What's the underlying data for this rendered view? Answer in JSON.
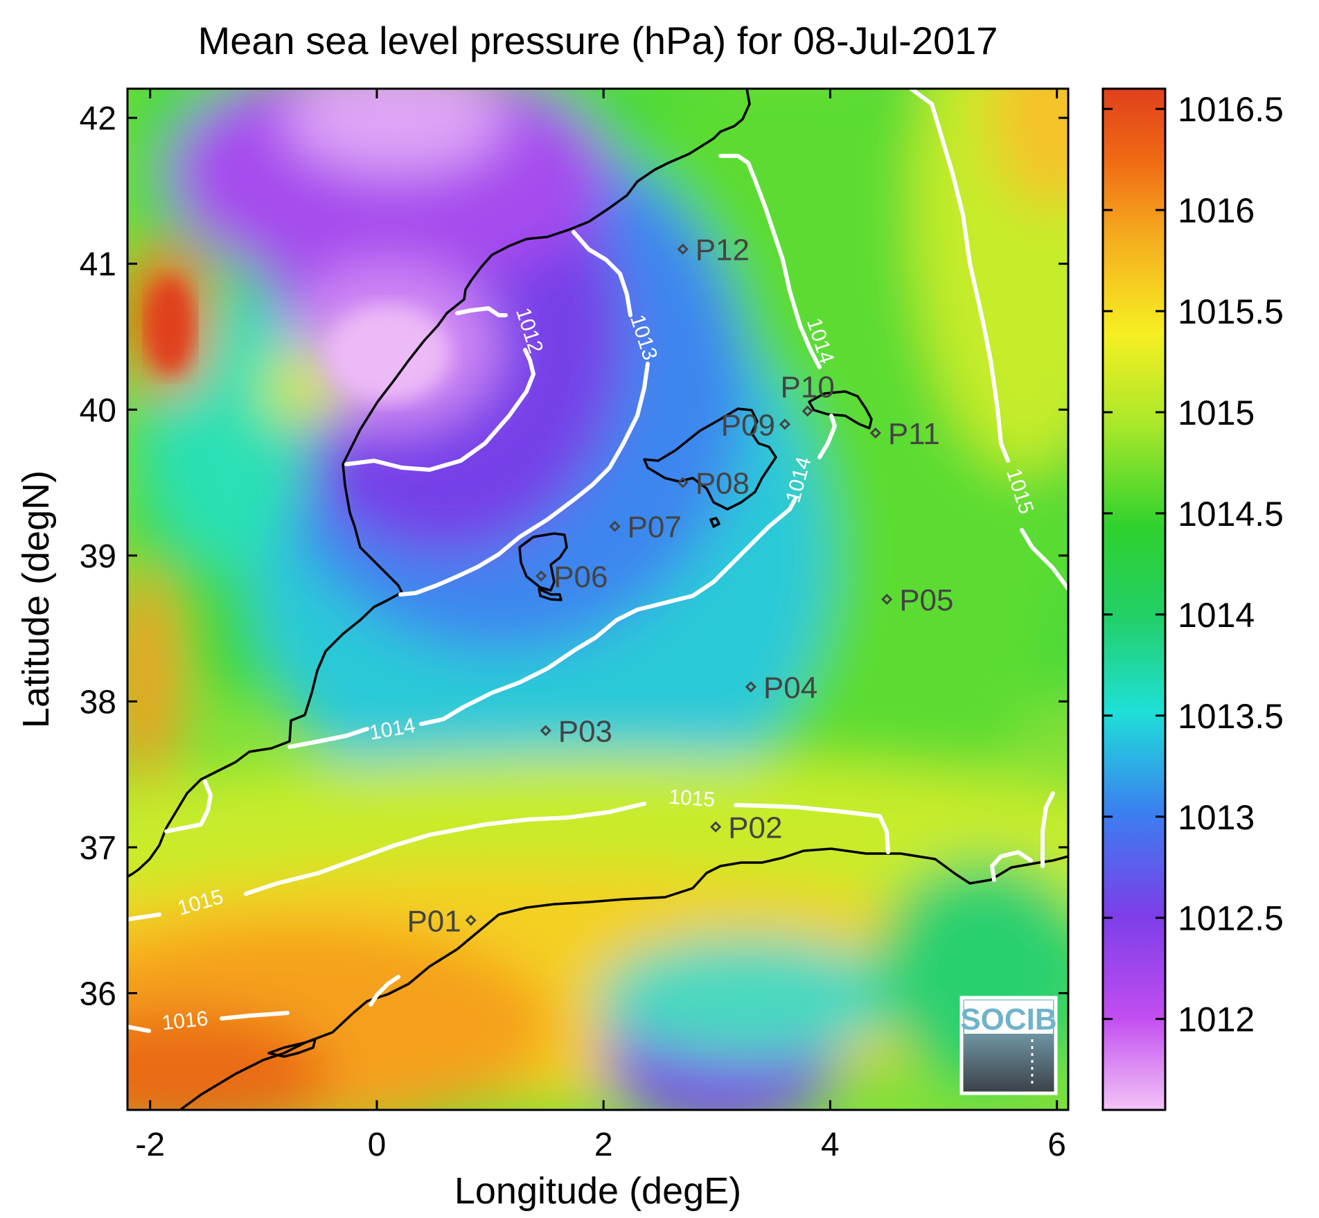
{
  "title": "Mean sea level pressure (hPa) for 08-Jul-2017",
  "chart_data": {
    "type": "heatmap",
    "title": "Mean sea level pressure (hPa) for 08-Jul-2017",
    "xlabel": "Longitude (degE)",
    "ylabel": "Latitude (degN)",
    "xlim": [
      -2.2,
      6.1
    ],
    "ylim": [
      35.2,
      42.2
    ],
    "xticks": [
      {
        "value": -2,
        "label": "-2"
      },
      {
        "value": 0,
        "label": "0"
      },
      {
        "value": 2,
        "label": "2"
      },
      {
        "value": 4,
        "label": "4"
      },
      {
        "value": 6,
        "label": "6"
      }
    ],
    "yticks": [
      {
        "value": 36,
        "label": "36"
      },
      {
        "value": 37,
        "label": "37"
      },
      {
        "value": 38,
        "label": "38"
      },
      {
        "value": 39,
        "label": "39"
      },
      {
        "value": 40,
        "label": "40"
      },
      {
        "value": 41,
        "label": "41"
      },
      {
        "value": 42,
        "label": "42"
      }
    ],
    "colorbar": {
      "range": [
        1011.55,
        1016.6
      ],
      "ticks": [
        {
          "value": 1012,
          "label": "1012"
        },
        {
          "value": 1012.5,
          "label": "1012.5"
        },
        {
          "value": 1013,
          "label": "1013"
        },
        {
          "value": 1013.5,
          "label": "1013.5"
        },
        {
          "value": 1014,
          "label": "1014"
        },
        {
          "value": 1014.5,
          "label": "1014.5"
        },
        {
          "value": 1015,
          "label": "1015"
        },
        {
          "value": 1015.5,
          "label": "1015.5"
        },
        {
          "value": 1016,
          "label": "1016"
        },
        {
          "value": 1016.5,
          "label": "1016.5"
        }
      ],
      "colors": [
        "#f3c4f7",
        "#c24ef0",
        "#7d3ee8",
        "#3b7ef0",
        "#1ee0d8",
        "#22d06a",
        "#2ed12e",
        "#a8e82a",
        "#f6ef22",
        "#f5a81e",
        "#f06a14",
        "#e0401c"
      ]
    },
    "contours": [
      {
        "level": "1012",
        "label": "1012"
      },
      {
        "level": "1013",
        "label": "1013"
      },
      {
        "level": "1014",
        "label": "1014"
      },
      {
        "level": "1015",
        "label": "1015"
      },
      {
        "level": "1016",
        "label": "1016"
      }
    ],
    "stations": [
      {
        "id": "P01",
        "lon": 0.83,
        "lat": 36.5
      },
      {
        "id": "P02",
        "lon": 2.99,
        "lat": 37.14
      },
      {
        "id": "P03",
        "lon": 1.49,
        "lat": 37.8
      },
      {
        "id": "P04",
        "lon": 3.3,
        "lat": 38.1
      },
      {
        "id": "P05",
        "lon": 4.5,
        "lat": 38.7
      },
      {
        "id": "P06",
        "lon": 1.45,
        "lat": 38.86
      },
      {
        "id": "P07",
        "lon": 2.1,
        "lat": 39.2
      },
      {
        "id": "P08",
        "lon": 2.7,
        "lat": 39.5
      },
      {
        "id": "P09",
        "lon": 3.6,
        "lat": 39.9
      },
      {
        "id": "P10",
        "lon": 3.8,
        "lat": 39.99
      },
      {
        "id": "P11",
        "lon": 4.4,
        "lat": 39.84
      },
      {
        "id": "P12",
        "lon": 2.7,
        "lat": 41.1
      }
    ]
  },
  "logo": {
    "text": "SOCIB"
  }
}
